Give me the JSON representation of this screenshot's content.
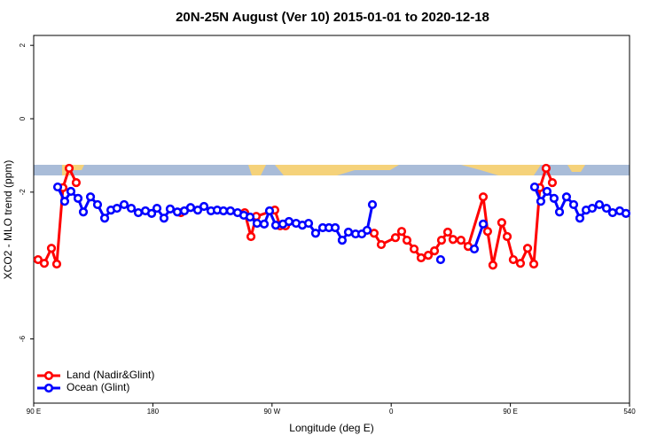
{
  "chart_data": {
    "type": "line",
    "title": "20N-25N August (Ver 10)   2015-01-01 to 2020-12-18",
    "x_label": "Longitude (deg E)",
    "y_label": "XCO2 - MLO trend (ppm)",
    "xlim": [
      90,
      540
    ],
    "xticks": [
      {
        "value": 90,
        "label": "90 E"
      },
      180,
      {
        "value": 270,
        "label": "90 W"
      },
      {
        "value": 360,
        "label": "0"
      },
      {
        "value": 450,
        "label": "90 E"
      },
      540
    ],
    "ylim": [
      -7.75,
      2.27
    ],
    "yticks": [
      2,
      0,
      -2,
      -6
    ],
    "legend": "bottom-left",
    "series": [
      {
        "name": "Land (Nadir&Glint)",
        "color": "#ff0000",
        "x": [
          93.3,
          98.0,
          103.4,
          107.4,
          112.1,
          116.8,
          122.1,
          null,
          201.1,
          null,
          249.4,
          254.1,
          258.1,
          272.1,
          276.1,
          280.2,
          null,
          347.1,
          352.5,
          363.2,
          367.9,
          371.9,
          377.3,
          382.6,
          388.0,
          392.7,
          398.0,
          402.7,
          406.7,
          412.7,
          418.1,
          429.5,
          432.8,
          436.8,
          443.5,
          447.6,
          452.2,
          457.6,
          463.0,
          467.7,
          472.3,
          477.0,
          481.7
        ],
        "values": [
          -3.84,
          -3.94,
          -3.53,
          -3.96,
          -1.88,
          -1.35,
          -1.74,
          null,
          -2.56,
          null,
          -2.56,
          -3.21,
          -2.66,
          -2.49,
          -2.92,
          -2.92,
          null,
          -3.12,
          -3.43,
          -3.24,
          -3.07,
          -3.31,
          -3.55,
          -3.79,
          -3.72,
          -3.6,
          -3.31,
          -3.09,
          -3.29,
          -3.31,
          -3.48,
          -2.13,
          -3.07,
          -3.99,
          -2.83,
          -3.21,
          -3.84,
          -3.94,
          -3.53,
          -3.96,
          -1.88,
          -1.35,
          -1.74
        ]
      },
      {
        "name": "Ocean (Glint)",
        "color": "#0000ff",
        "x": [
          108.1,
          113.4,
          118.1,
          123.5,
          127.5,
          132.9,
          138.2,
          143.6,
          148.3,
          152.9,
          158.3,
          163.7,
          169.0,
          174.4,
          179.1,
          183.1,
          188.4,
          193.1,
          198.5,
          203.8,
          208.5,
          213.9,
          218.6,
          223.9,
          228.6,
          233.3,
          238.6,
          244.0,
          248.7,
          253.4,
          258.7,
          264.1,
          268.1,
          272.8,
          278.2,
          282.8,
          288.2,
          292.9,
          297.6,
          302.9,
          308.3,
          313.0,
          317.7,
          323.0,
          327.7,
          333.1,
          337.8,
          341.8,
          345.8,
          null,
          397.3,
          null,
          422.8,
          429.5,
          null,
          468.3,
          473.0,
          477.7,
          483.0,
          487.1,
          492.4,
          497.8,
          502.5,
          507.2,
          511.8,
          517.2,
          522.6,
          527.2,
          532.6,
          537.3
        ],
        "values": [
          -1.86,
          -2.25,
          -1.98,
          -2.17,
          -2.54,
          -2.13,
          -2.34,
          -2.71,
          -2.49,
          -2.44,
          -2.34,
          -2.44,
          -2.56,
          -2.51,
          -2.58,
          -2.44,
          -2.71,
          -2.46,
          -2.54,
          -2.51,
          -2.42,
          -2.49,
          -2.39,
          -2.51,
          -2.49,
          -2.51,
          -2.51,
          -2.56,
          -2.63,
          -2.68,
          -2.85,
          -2.87,
          -2.51,
          -2.9,
          -2.87,
          -2.8,
          -2.85,
          -2.9,
          -2.85,
          -3.12,
          -2.97,
          -2.97,
          -2.97,
          -3.31,
          -3.09,
          -3.14,
          -3.14,
          -3.04,
          -2.34,
          null,
          -3.84,
          null,
          -3.55,
          -2.87,
          null,
          -1.86,
          -2.25,
          -1.98,
          -2.17,
          -2.54,
          -2.13,
          -2.34,
          -2.71,
          -2.49,
          -2.44,
          -2.34,
          -2.44,
          -2.56,
          -2.51,
          -2.58
        ]
      }
    ]
  }
}
